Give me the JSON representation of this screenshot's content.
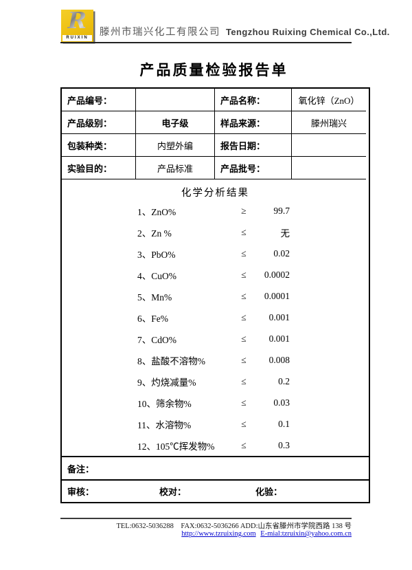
{
  "header": {
    "logo": {
      "letter": "R",
      "brand": "RUIXIN"
    },
    "company_cn": "滕州市瑞兴化工有限公司",
    "company_en": "Tengzhou Ruixing Chemical Co.,Ltd."
  },
  "title": "产品质量检验报告单",
  "info_table": {
    "rows": [
      [
        {
          "text": "产品编号：",
          "kind": "label"
        },
        {
          "text": "",
          "kind": "value"
        },
        {
          "text": "产品名称：",
          "kind": "label"
        },
        {
          "text": "氧化锌（ZnO）",
          "kind": "value"
        }
      ],
      [
        {
          "text": "产品级别：",
          "kind": "label"
        },
        {
          "text": "电子级",
          "kind": "value-bold"
        },
        {
          "text": "样品来源：",
          "kind": "label"
        },
        {
          "text": "滕州瑞兴",
          "kind": "value"
        }
      ],
      [
        {
          "text": "包装种类：",
          "kind": "label"
        },
        {
          "text": "内塑外编",
          "kind": "value"
        },
        {
          "text": "报告日期：",
          "kind": "label"
        },
        {
          "text": "",
          "kind": "value"
        }
      ],
      [
        {
          "text": "实验目的：",
          "kind": "label"
        },
        {
          "text": "产品标准",
          "kind": "value"
        },
        {
          "text": "产品批号：",
          "kind": "label"
        },
        {
          "text": "",
          "kind": "value"
        }
      ]
    ]
  },
  "analysis": {
    "section_title": "化学分析结果",
    "items": [
      {
        "label": "1、ZnO%",
        "symbol": "≥",
        "value": "99.7"
      },
      {
        "label": "2、Zn %",
        "symbol": "≤",
        "value": "无"
      },
      {
        "label": "3、PbO%",
        "symbol": "≤",
        "value": "0.02"
      },
      {
        "label": "4、CuO%",
        "symbol": "≤",
        "value": "0.0002"
      },
      {
        "label": "5、Mn%",
        "symbol": "≤",
        "value": "0.0001"
      },
      {
        "label": "6、Fe%",
        "symbol": "≤",
        "value": "0.001"
      },
      {
        "label": "7、CdO%",
        "symbol": "≤",
        "value": "0.001"
      },
      {
        "label": "8、盐酸不溶物%",
        "symbol": "≤",
        "value": "0.008"
      },
      {
        "label": "9、灼烧减量%",
        "symbol": "≤",
        "value": "0.2"
      },
      {
        "label": "10、筛余物%",
        "symbol": "≤",
        "value": "0.03"
      },
      {
        "label": "11、水溶物%",
        "symbol": "≤",
        "value": "0.1"
      },
      {
        "label": "12、105℃挥发物%",
        "symbol": "≤",
        "value": "0.3"
      }
    ]
  },
  "remarks_label": "备注：",
  "signoff": {
    "review": "审核：",
    "proofread": "校对：",
    "assay": "化验："
  },
  "footer": {
    "line1": "TEL:0632-5036288    FAX:0632-5036266 ADD:山东省滕州市学院西路 138 号",
    "url": "http://www.tzruixing.com",
    "email": "E-mial:tzruixin@yahoo.com.cn"
  },
  "colors": {
    "logo_yellow": "#EFC41B",
    "link_blue": "#0000CD"
  }
}
